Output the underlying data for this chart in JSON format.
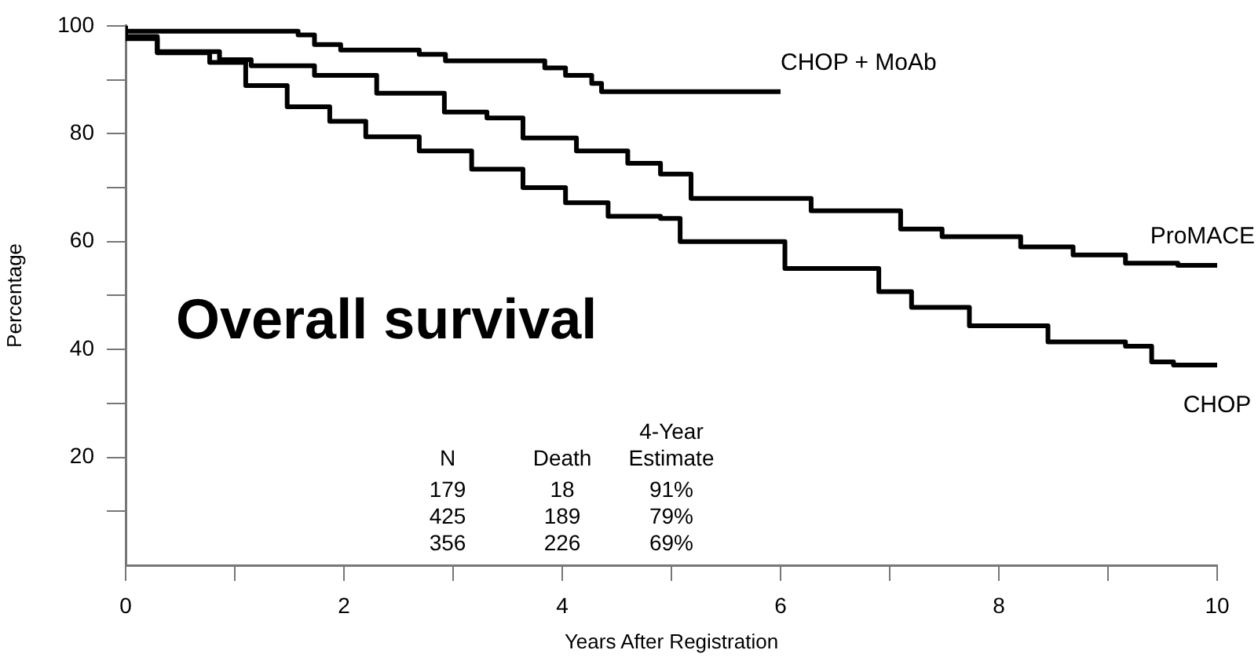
{
  "chart_data": {
    "type": "step",
    "title": "Overall survival",
    "xlabel": "Years After Registration",
    "ylabel": "Percentage",
    "annotations": [
      "N",
      "Death",
      "4-Year Estimate",
      "179",
      "18",
      "91%",
      "425",
      "189",
      "79%",
      "356",
      "226",
      "69%"
    ],
    "xlim": [
      0,
      10
    ],
    "ylim": [
      0,
      100
    ],
    "xticks": [
      0,
      {
        "value": 1,
        "label": null
      },
      2,
      {
        "value": 3,
        "label": null
      },
      4,
      {
        "value": 5,
        "label": null
      },
      6,
      {
        "value": 7,
        "label": null
      },
      8,
      {
        "value": 9,
        "label": null
      },
      10
    ],
    "yticks": [
      {
        "value": 10,
        "label": null
      },
      20,
      {
        "value": 30,
        "label": null
      },
      40,
      {
        "value": 50,
        "label": null
      },
      60,
      {
        "value": 70,
        "label": null
      },
      80,
      {
        "value": 90,
        "label": null
      },
      100
    ],
    "grid": false,
    "legend": false,
    "series": [
      {
        "name": "CHOP + MoAb",
        "color": "#000000",
        "x": [
          0,
          1.58,
          1.73,
          1.97,
          2.69,
          2.93,
          3.84,
          4.03,
          4.27,
          4.36,
          4.56,
          6.0
        ],
        "values": [
          100,
          99,
          98.3,
          96.5,
          95.5,
          94.7,
          93.5,
          92.2,
          90.8,
          89.3,
          87.8,
          87.8
        ]
      },
      {
        "name": "ProMACE",
        "color": "#000000",
        "x": [
          0,
          0.29,
          0.86,
          1.15,
          1.73,
          2.3,
          2.92,
          3.31,
          3.64,
          4.13,
          4.6,
          4.9,
          5.18,
          6.28,
          7.1,
          7.48,
          8.2,
          8.68,
          9.16,
          9.64,
          10
        ],
        "values": [
          100,
          98,
          95.2,
          93.7,
          92.6,
          90.8,
          87.5,
          84,
          82.9,
          79.2,
          76.8,
          74.5,
          72.5,
          68,
          65.7,
          62.3,
          60.9,
          59,
          57.5,
          56,
          55.6
        ]
      },
      {
        "name": "CHOP",
        "color": "#000000",
        "x": [
          0,
          0.29,
          0.77,
          1.1,
          1.48,
          1.87,
          2.2,
          2.69,
          3.17,
          3.64,
          4.03,
          4.42,
          4.9,
          5.08,
          6.04,
          6.9,
          7.2,
          7.73,
          8.45,
          9.16,
          9.4,
          9.6,
          10
        ],
        "values": [
          100,
          97.6,
          95,
          93.2,
          88.9,
          85,
          82.3,
          79.4,
          76.8,
          73.4,
          70,
          67.2,
          64.7,
          64.3,
          60,
          55,
          50.7,
          47.8,
          44.4,
          41.4,
          40.6,
          37.7,
          37.1
        ]
      }
    ]
  }
}
